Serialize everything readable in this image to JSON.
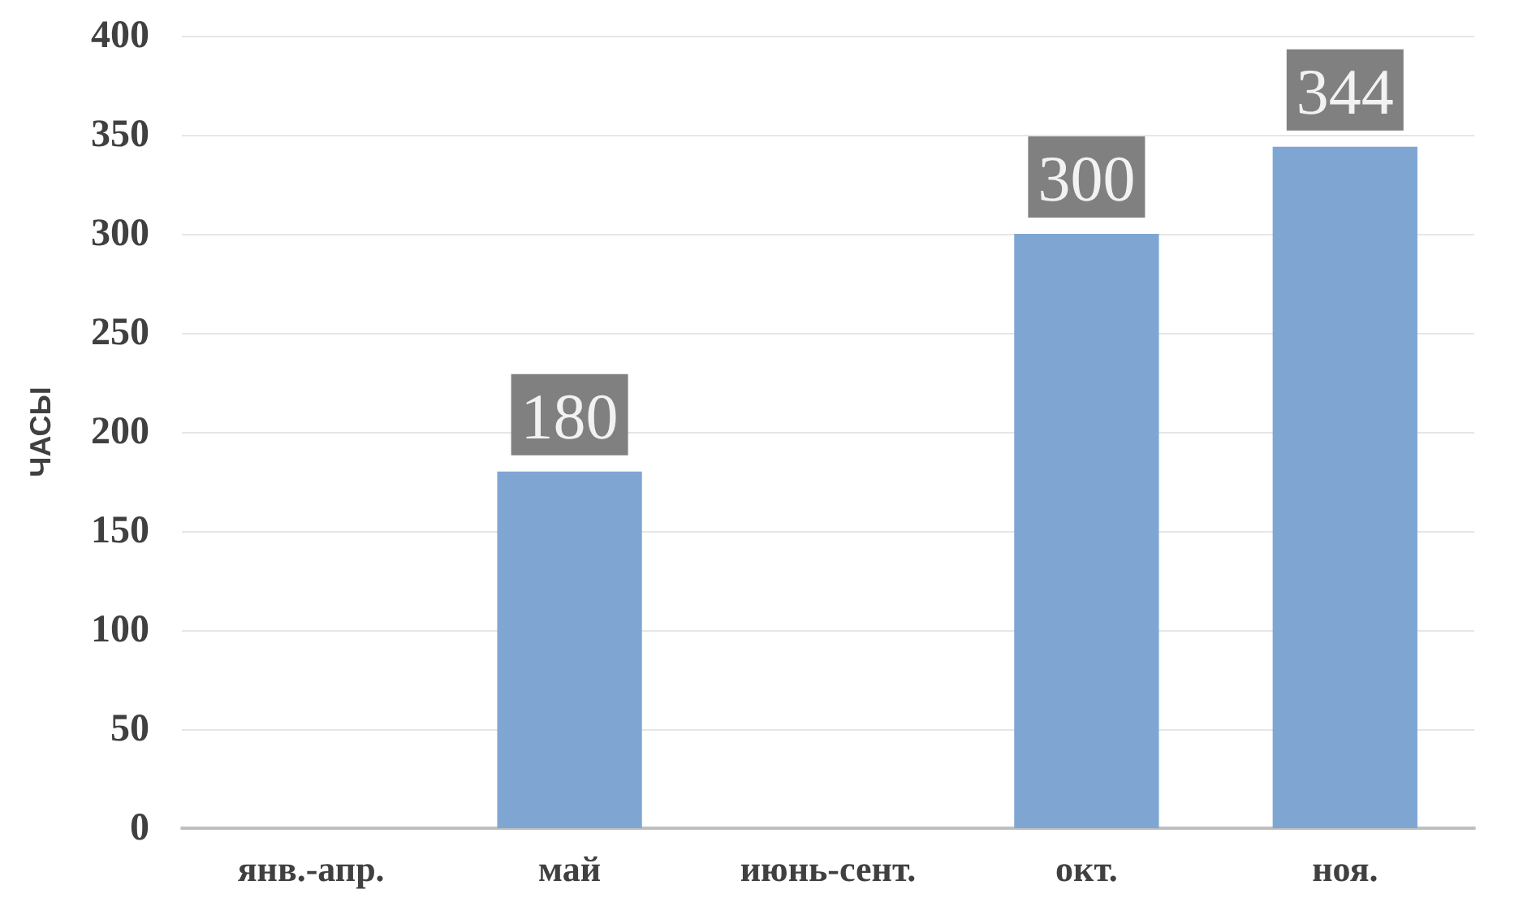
{
  "chart_data": {
    "type": "bar",
    "ylabel": "ЧАСЫ",
    "categories": [
      "янв.-апр.",
      "май",
      "июнь-сент.",
      "окт.",
      "ноя."
    ],
    "values": [
      null,
      180,
      null,
      300,
      344
    ],
    "color": "#7fa6d3",
    "ylim": [
      0,
      400
    ],
    "yticks": [
      0,
      50,
      100,
      150,
      200,
      250,
      300,
      350,
      400
    ],
    "grid": "y",
    "data_labels": true
  }
}
